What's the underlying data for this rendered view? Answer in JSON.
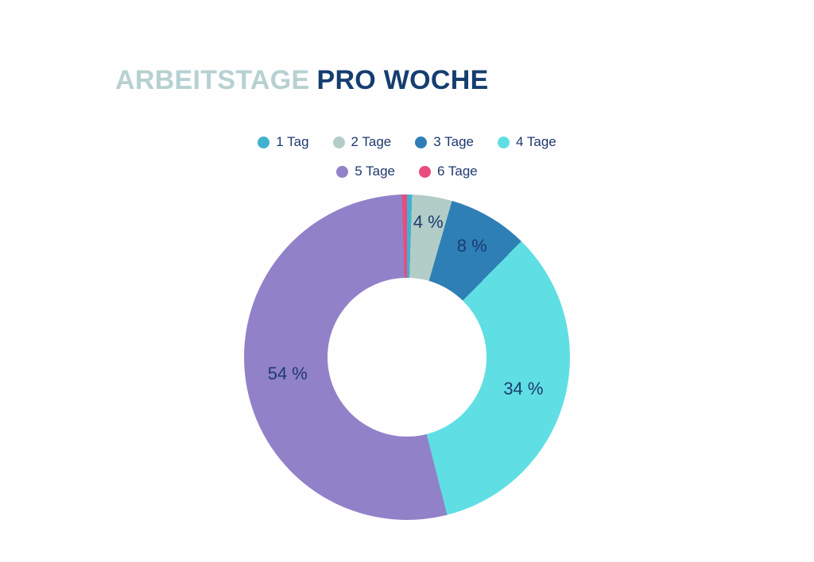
{
  "page": {
    "background": "#fffefe"
  },
  "title": {
    "part_light": "ARBEITSTAGE",
    "part_dark": "PRO WOCHE",
    "light_color": "#b7d1d2",
    "dark_color": "#153e70"
  },
  "text_color": "#1d3a6e",
  "chart_data": {
    "type": "pie",
    "subtype": "donut",
    "title": "ARBEITSTAGE PRO WOCHE",
    "categories": [
      "1 Tag",
      "2 Tage",
      "3 Tage",
      "4 Tage",
      "5 Tage",
      "6 Tage"
    ],
    "values": [
      0.5,
      4,
      8,
      34,
      54,
      0.5
    ],
    "displayed_value_labels": [
      "",
      "4 %",
      "8 %",
      "34 %",
      "54 %",
      ""
    ],
    "colors": [
      "#41b2d1",
      "#b2cdc7",
      "#2e7fb5",
      "#5fdfe3",
      "#9181c8",
      "#ea4c7d"
    ],
    "legend_position": "top",
    "legend_row_split": 4,
    "start_angle_deg": 0,
    "donut_hole_ratio": 0.49,
    "label_radius_factors": [
      0.8,
      0.84,
      0.79,
      0.74,
      0.74,
      0.8
    ]
  }
}
